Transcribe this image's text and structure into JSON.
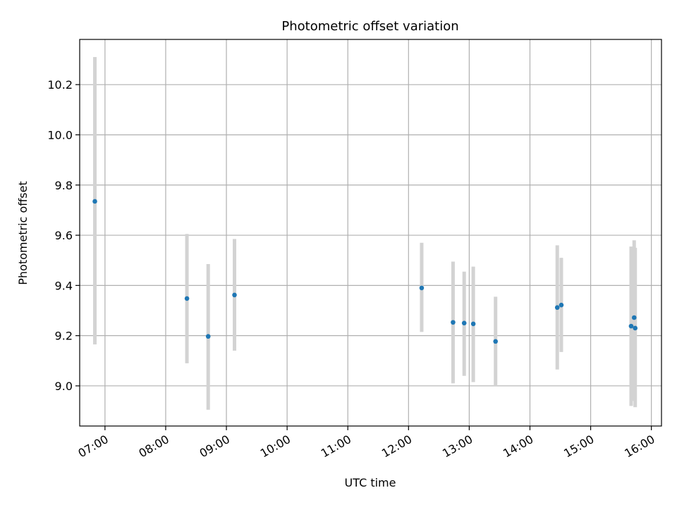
{
  "chart_data": {
    "type": "scatter",
    "title": "Photometric offset variation",
    "xlabel": "UTC time",
    "ylabel": "Photometric offset",
    "x_axis": "time (UTC, HH:MM)",
    "xlim": [
      "06:35",
      "16:10"
    ],
    "ylim": [
      8.84,
      10.38
    ],
    "x_ticks": [
      "07:00",
      "08:00",
      "09:00",
      "10:00",
      "11:00",
      "12:00",
      "13:00",
      "14:00",
      "15:00",
      "16:00"
    ],
    "y_ticks": [
      9.0,
      9.2,
      9.4,
      9.6,
      9.8,
      10.0,
      10.2
    ],
    "y_tick_labels": [
      "9.0",
      "9.2",
      "9.4",
      "9.6",
      "9.8",
      "10.0",
      "10.2"
    ],
    "grid": true,
    "point_color": "#1f77b4",
    "errorbar_color": "#d3d3d3",
    "points": [
      {
        "x": "06:50",
        "y": 9.735,
        "ylow": 9.165,
        "yhigh": 10.31
      },
      {
        "x": "08:21",
        "y": 9.348,
        "ylow": 9.09,
        "yhigh": 9.605
      },
      {
        "x": "08:42",
        "y": 9.197,
        "ylow": 8.905,
        "yhigh": 9.485
      },
      {
        "x": "09:08",
        "y": 9.362,
        "ylow": 9.14,
        "yhigh": 9.585
      },
      {
        "x": "12:13",
        "y": 9.39,
        "ylow": 9.215,
        "yhigh": 9.57
      },
      {
        "x": "12:44",
        "y": 9.253,
        "ylow": 9.01,
        "yhigh": 9.495
      },
      {
        "x": "12:55",
        "y": 9.25,
        "ylow": 9.04,
        "yhigh": 9.455
      },
      {
        "x": "13:04",
        "y": 9.247,
        "ylow": 9.015,
        "yhigh": 9.475
      },
      {
        "x": "13:26",
        "y": 9.177,
        "ylow": 9.0,
        "yhigh": 9.355
      },
      {
        "x": "14:27",
        "y": 9.312,
        "ylow": 9.065,
        "yhigh": 9.56
      },
      {
        "x": "14:31",
        "y": 9.322,
        "ylow": 9.135,
        "yhigh": 9.51
      },
      {
        "x": "15:40",
        "y": 9.238,
        "ylow": 8.92,
        "yhigh": 9.555
      },
      {
        "x": "15:43",
        "y": 9.272,
        "ylow": 8.94,
        "yhigh": 9.58
      },
      {
        "x": "15:44",
        "y": 9.23,
        "ylow": 8.915,
        "yhigh": 9.55
      }
    ]
  }
}
